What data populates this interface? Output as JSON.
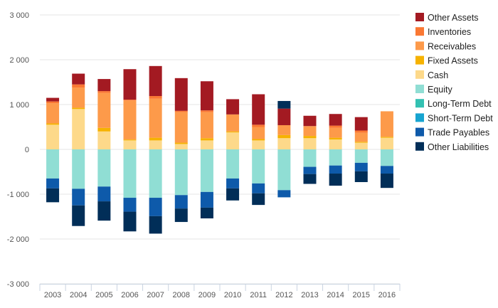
{
  "chart_data": {
    "type": "bar",
    "stacked": true,
    "title": "",
    "xlabel": "",
    "ylabel": "",
    "ylim": [
      -3000,
      3000
    ],
    "yticks": [
      3000,
      2000,
      1000,
      0,
      -1000,
      -2000,
      -3000
    ],
    "ytick_labels": [
      "3 000",
      "2 000",
      "1 000",
      "0",
      "-1 000",
      "-2 000",
      "-3 000"
    ],
    "grid": true,
    "legend_position": "right",
    "categories": [
      "2003",
      "2004",
      "2005",
      "2006",
      "2007",
      "2008",
      "2009",
      "2010",
      "2011",
      "2012",
      "2013",
      "2014",
      "2015",
      "2016"
    ],
    "series": [
      {
        "name": "Cash",
        "color": "#fdd98a",
        "values": [
          550,
          900,
          400,
          200,
          200,
          120,
          200,
          380,
          200,
          250,
          250,
          220,
          150,
          260
        ]
      },
      {
        "name": "Fixed Assets",
        "color": "#f6b200",
        "values": [
          30,
          30,
          80,
          20,
          60,
          30,
          50,
          20,
          30,
          70,
          50,
          40,
          20,
          20
        ]
      },
      {
        "name": "Receivables",
        "color": "#fd9a4a",
        "values": [
          450,
          450,
          780,
          870,
          870,
          680,
          580,
          380,
          270,
          220,
          220,
          220,
          200,
          570
        ]
      },
      {
        "name": "Inventories",
        "color": "#fa7833",
        "values": [
          40,
          70,
          40,
          20,
          60,
          30,
          40,
          0,
          50,
          0,
          0,
          50,
          50,
          0
        ]
      },
      {
        "name": "Other Assets",
        "color": "#a31a22",
        "values": [
          80,
          240,
          270,
          680,
          670,
          730,
          650,
          340,
          680,
          370,
          230,
          260,
          300,
          0
        ]
      },
      {
        "name": "Equity",
        "color": "#90ded4",
        "values": [
          -650,
          -880,
          -830,
          -1080,
          -1080,
          -1020,
          -950,
          -650,
          -760,
          -910,
          -390,
          -360,
          -300,
          -370
        ]
      },
      {
        "name": "Long-Term Debt",
        "color": "#33c1b2",
        "values": [
          0,
          0,
          0,
          0,
          0,
          0,
          0,
          0,
          0,
          0,
          0,
          0,
          0,
          0
        ]
      },
      {
        "name": "Short-Term Debt",
        "color": "#17a4d0",
        "values": [
          0,
          0,
          0,
          0,
          0,
          0,
          0,
          0,
          0,
          0,
          0,
          0,
          0,
          0
        ]
      },
      {
        "name": "Trade Payables",
        "color": "#0e5aaa",
        "values": [
          -220,
          -370,
          -330,
          -310,
          -410,
          -300,
          -350,
          -220,
          -220,
          -160,
          -160,
          -180,
          -190,
          -170
        ]
      },
      {
        "name": "Other Liabilities",
        "color": "#012e58",
        "values": [
          -310,
          -460,
          -430,
          -440,
          -390,
          -300,
          -240,
          -270,
          -260,
          170,
          -220,
          -270,
          -240,
          -320
        ]
      }
    ]
  }
}
